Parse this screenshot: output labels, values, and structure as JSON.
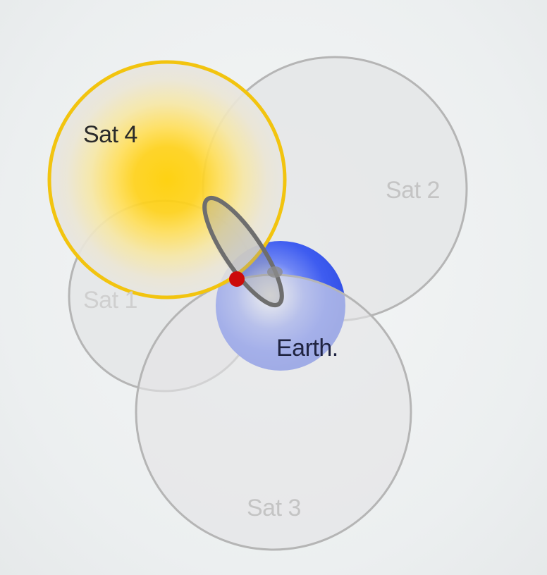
{
  "diagram": {
    "satellites": [
      {
        "id": "sat1",
        "label": "Sat 1"
      },
      {
        "id": "sat2",
        "label": "Sat 2"
      },
      {
        "id": "sat3",
        "label": "Sat 3"
      },
      {
        "id": "sat4",
        "label": "Sat 4"
      }
    ],
    "earth": {
      "label": "Earth."
    },
    "colors": {
      "sphere_fill": "#e3e4e5",
      "sphere_stroke": "#b3b3b3",
      "sat4_ring": "#f2c40f",
      "sun_core": "#ffcc00",
      "earth_blue": "#3d5cf0",
      "intersection_ellipse": "#6e6e6e",
      "fix_point": "#cc0a0a"
    }
  }
}
